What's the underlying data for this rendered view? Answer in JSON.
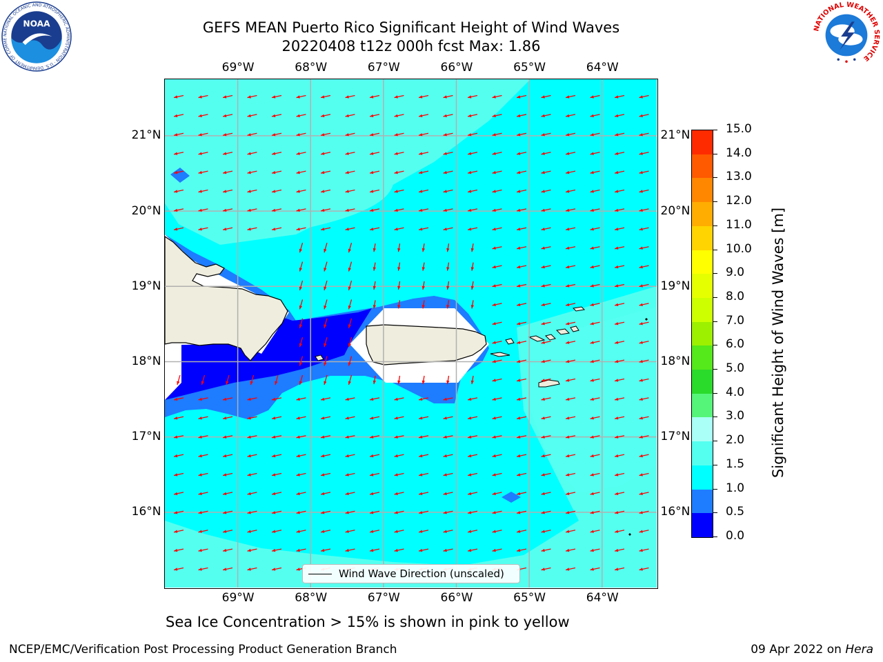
{
  "header": {
    "title_line1": "GEFS MEAN Puerto Rico Significant Height of Wind Waves",
    "title_line2": "20220408 t12z 000h fcst   Max: 1.86"
  },
  "axes": {
    "lon_labels": [
      "69°W",
      "68°W",
      "67°W",
      "66°W",
      "65°W",
      "64°W"
    ],
    "lon_values": [
      -69,
      -68,
      -67,
      -66,
      -65,
      -64
    ],
    "lat_labels": [
      "21°N",
      "20°N",
      "19°N",
      "18°N",
      "17°N",
      "16°N"
    ],
    "lat_values": [
      21,
      20,
      19,
      18,
      17,
      16
    ],
    "lon_range": [
      -70,
      -63.25
    ],
    "lat_range": [
      15,
      21.75
    ]
  },
  "colorbar": {
    "title": "Significant Height of Wind Waves [m]",
    "tick_labels": [
      "15.0",
      "14.0",
      "13.0",
      "12.0",
      "11.0",
      "10.0",
      "9.0",
      "8.0",
      "7.0",
      "6.0",
      "5.0",
      "4.0",
      "3.0",
      "2.0",
      "1.5",
      "1.0",
      "0.5",
      "0.0"
    ],
    "levels": [
      0,
      0.5,
      1.0,
      1.5,
      2.0,
      3.0,
      4.0,
      5.0,
      6.0,
      7.0,
      8.0,
      9.0,
      10.0,
      11.0,
      12.0,
      13.0,
      14.0,
      15.0
    ],
    "colors": [
      "#0000ff",
      "#1e7cff",
      "#00ffff",
      "#55fff0",
      "#aafff6",
      "#55f57a",
      "#2bdb2b",
      "#55e81a",
      "#9df000",
      "#cdff00",
      "#e6ff00",
      "#ffff00",
      "#ffd400",
      "#ffad00",
      "#ff8700",
      "#ff5a00",
      "#ff2b00"
    ]
  },
  "legend": {
    "label": "Wind Wave Direction (unscaled)"
  },
  "map_colors": {
    "land": "#efedde",
    "ocean_1_0_1_5": "#00ffff",
    "ocean_1_5_2_0": "#55fff0",
    "ocean_0_5_1_0": "#1e7cff",
    "ocean_0_0_0_5": "#0000ff",
    "arrow": "#ff0000",
    "grid": "#b0b0b0"
  },
  "footer": {
    "note": "Sea Ice Concentration > 15% is shown in pink to yellow",
    "left": "NCEP/EMC/Verification Post Processing Product Generation Branch",
    "right_prefix": "09 Apr 2022 on ",
    "right_host": "Hera"
  },
  "logos": {
    "noaa_text": "NOAA",
    "noaa_ring": "NATIONAL OCEANIC AND ATMOSPHERIC ADMINISTRATION · U.S. DEPARTMENT OF COMMERCE",
    "nws_ring": "NATIONAL WEATHER SERVICE"
  }
}
